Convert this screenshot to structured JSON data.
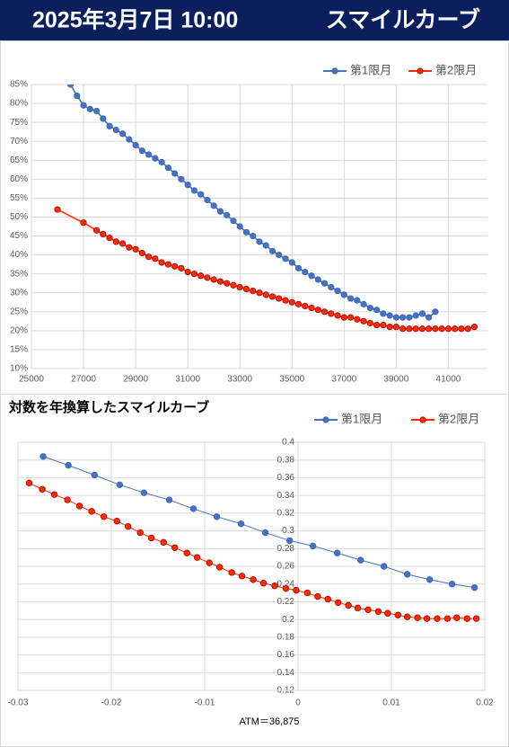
{
  "header": {
    "date": "2025年3月7日 10:00",
    "title": "スマイルカーブ"
  },
  "chart_data": [
    {
      "type": "line",
      "legend": "top-right",
      "grid": true,
      "xlim": [
        25000,
        42500
      ],
      "xticks": [
        25000,
        27000,
        29000,
        31000,
        33000,
        35000,
        37000,
        39000,
        41000
      ],
      "ylim": [
        10,
        85
      ],
      "yticks": [
        {
          "value": 10,
          "label": "10%"
        },
        {
          "value": 15,
          "label": "15%"
        },
        {
          "value": 20,
          "label": "20%"
        },
        {
          "value": 25,
          "label": "25%"
        },
        {
          "value": 30,
          "label": "30%"
        },
        {
          "value": 35,
          "label": "35%"
        },
        {
          "value": 40,
          "label": "40%"
        },
        {
          "value": 45,
          "label": "45%"
        },
        {
          "value": 50,
          "label": "50%"
        },
        {
          "value": 55,
          "label": "55%"
        },
        {
          "value": 60,
          "label": "60%"
        },
        {
          "value": 65,
          "label": "65%"
        },
        {
          "value": 70,
          "label": "70%"
        },
        {
          "value": 75,
          "label": "75%"
        },
        {
          "value": 80,
          "label": "80%"
        },
        {
          "value": 85,
          "label": "85%"
        }
      ],
      "series": [
        {
          "name": "第1限月",
          "color": "#4472c4",
          "x": [
            26500,
            26750,
            27000,
            27250,
            27500,
            27750,
            28000,
            28250,
            28500,
            28750,
            29000,
            29250,
            29500,
            29750,
            30000,
            30250,
            30500,
            30750,
            31000,
            31250,
            31500,
            31750,
            32000,
            32250,
            32500,
            32750,
            33000,
            33250,
            33500,
            33750,
            34000,
            34250,
            34500,
            34750,
            35000,
            35250,
            35500,
            35750,
            36000,
            36250,
            36500,
            36750,
            37000,
            37250,
            37500,
            37750,
            38000,
            38250,
            38500,
            38750,
            39000,
            39250,
            39500,
            39750,
            40000,
            40250,
            40500
          ],
          "values": [
            85,
            82,
            79.5,
            78.5,
            78,
            76,
            74,
            73,
            72,
            70.5,
            69,
            67.5,
            66.5,
            65.5,
            64.5,
            63,
            61.5,
            60,
            58.5,
            57,
            56,
            54.5,
            53,
            51.5,
            50.5,
            49,
            47.5,
            46,
            45,
            43.5,
            42.5,
            41,
            40,
            39,
            38,
            36.5,
            35.5,
            34.5,
            33.5,
            32.5,
            31.5,
            30.5,
            29.5,
            28.5,
            28,
            27,
            26,
            25.5,
            24.5,
            24,
            23.5,
            23.5,
            23.5,
            24,
            24.5,
            23.5,
            25
          ]
        },
        {
          "name": "第2限月",
          "color": "#ff2a00",
          "x": [
            26000,
            27000,
            27500,
            27750,
            28000,
            28250,
            28500,
            28750,
            29000,
            29250,
            29500,
            29750,
            30000,
            30250,
            30500,
            30750,
            31000,
            31250,
            31500,
            31750,
            32000,
            32250,
            32500,
            32750,
            33000,
            33250,
            33500,
            33750,
            34000,
            34250,
            34500,
            34750,
            35000,
            35250,
            35500,
            35750,
            36000,
            36250,
            36500,
            36750,
            37000,
            37250,
            37500,
            37750,
            38000,
            38250,
            38500,
            38750,
            39000,
            39250,
            39500,
            39750,
            40000,
            40250,
            40500,
            40750,
            41000,
            41250,
            41500,
            41750,
            42000
          ],
          "values": [
            52,
            48.5,
            46.5,
            45.5,
            44.5,
            43.5,
            43,
            42,
            41.5,
            40.5,
            39.5,
            39,
            38,
            37.5,
            37,
            36.5,
            35.5,
            35,
            34.5,
            34,
            33.5,
            33,
            32.5,
            32,
            31.5,
            31,
            30.5,
            30,
            29.5,
            29,
            28.5,
            28,
            27.5,
            27,
            26.5,
            26,
            25.5,
            25,
            24.5,
            24,
            23.5,
            23.5,
            23,
            22.5,
            22,
            21.5,
            21.5,
            21,
            21,
            20.5,
            20.5,
            20.5,
            20.5,
            20.5,
            20.5,
            20.5,
            20.5,
            20.5,
            20.5,
            20.5,
            21
          ]
        }
      ]
    },
    {
      "type": "line",
      "title": "対数を年換算したスマイルカーブ",
      "annotation": "ATM＝36,875",
      "legend": "top-right",
      "grid": true,
      "xlim": [
        -0.03,
        0.02
      ],
      "xticks": [
        -0.03,
        -0.02,
        -0.01,
        0,
        0.01,
        0.02
      ],
      "ylim": [
        0.12,
        0.4
      ],
      "yticks": [
        0.12,
        0.14,
        0.16,
        0.18,
        0.2,
        0.22,
        0.24,
        0.26,
        0.28,
        0.3,
        0.32,
        0.34,
        0.36,
        0.38,
        0.4
      ],
      "series": [
        {
          "name": "第1限月",
          "color": "#4472c4",
          "x": [
            -0.0273,
            -0.0246,
            -0.0218,
            -0.0191,
            -0.0165,
            -0.0138,
            -0.0112,
            -0.0087,
            -0.0061,
            -0.0035,
            -0.0009,
            0.0016,
            0.0042,
            0.0067,
            0.0092,
            0.0117,
            0.0141,
            0.0165,
            0.0189
          ],
          "values": [
            0.384,
            0.374,
            0.363,
            0.352,
            0.343,
            0.335,
            0.325,
            0.316,
            0.308,
            0.298,
            0.289,
            0.283,
            0.275,
            0.267,
            0.26,
            0.251,
            0.245,
            0.24,
            0.236
          ]
        },
        {
          "name": "第2限月",
          "color": "#ff2a00",
          "x": [
            -0.0288,
            -0.0274,
            -0.0261,
            -0.0247,
            -0.0234,
            -0.0221,
            -0.0208,
            -0.0194,
            -0.0182,
            -0.0169,
            -0.0157,
            -0.0144,
            -0.0132,
            -0.0119,
            -0.0108,
            -0.0095,
            -0.0084,
            -0.0071,
            -0.006,
            -0.0048,
            -0.0037,
            -0.0025,
            -0.0013,
            -0.0002,
            0.001,
            0.0021,
            0.0032,
            0.0043,
            0.0054,
            0.0064,
            0.0075,
            0.0086,
            0.0096,
            0.0107,
            0.0117,
            0.0128,
            0.0138,
            0.0149,
            0.016,
            0.017,
            0.0181,
            0.0191
          ],
          "values": [
            0.354,
            0.347,
            0.341,
            0.335,
            0.328,
            0.322,
            0.316,
            0.311,
            0.305,
            0.298,
            0.292,
            0.287,
            0.281,
            0.275,
            0.27,
            0.264,
            0.259,
            0.253,
            0.249,
            0.245,
            0.241,
            0.238,
            0.235,
            0.233,
            0.23,
            0.226,
            0.223,
            0.219,
            0.216,
            0.213,
            0.211,
            0.209,
            0.207,
            0.205,
            0.203,
            0.202,
            0.201,
            0.201,
            0.201,
            0.202,
            0.201,
            0.201
          ]
        }
      ]
    }
  ]
}
